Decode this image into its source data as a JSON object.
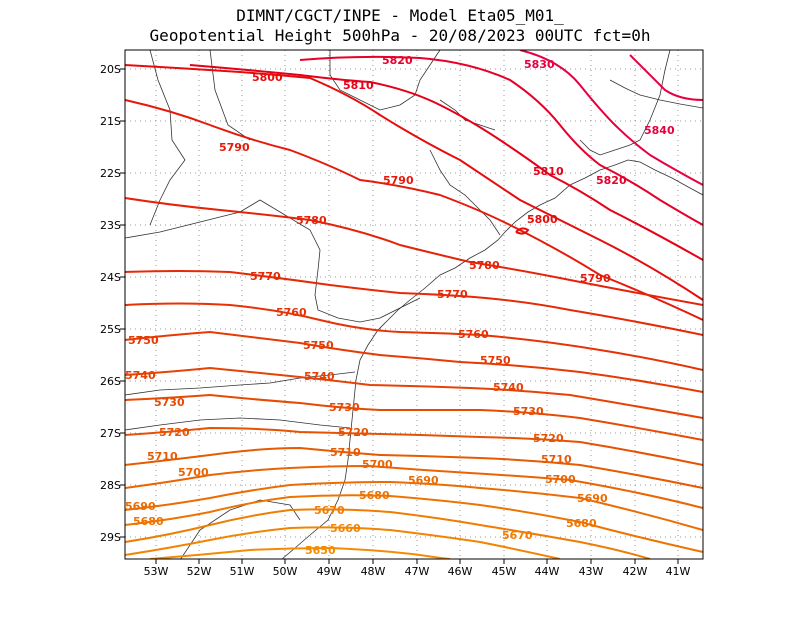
{
  "title_line1": "DIMNT/CGCT/INPE -  Model Eta05_M01_",
  "title_line2": "Geopotential Height 500hPa -  20/08/2023 00UTC fct=0h",
  "lat_ticks": [
    "20S",
    "21S",
    "22S",
    "23S",
    "24S",
    "25S",
    "26S",
    "27S",
    "28S",
    "29S"
  ],
  "lon_ticks": [
    "53W",
    "52W",
    "51W",
    "50W",
    "49W",
    "48W",
    "47W",
    "46W",
    "45W",
    "44W",
    "43W",
    "42W",
    "41W"
  ],
  "contour_labels": [
    {
      "text": "5830",
      "color": "#e60040"
    },
    {
      "text": "5840",
      "color": "#e60040"
    },
    {
      "text": "5820",
      "color": "#e6002a"
    },
    {
      "text": "5820",
      "color": "#e6002a"
    },
    {
      "text": "5810",
      "color": "#e60018"
    },
    {
      "text": "5810",
      "color": "#e60018"
    },
    {
      "text": "5800",
      "color": "#e60c0c"
    },
    {
      "text": "5800",
      "color": "#e60c0c"
    },
    {
      "text": "5790",
      "color": "#e61a0a"
    },
    {
      "text": "5790",
      "color": "#e61a0a"
    },
    {
      "text": "5790",
      "color": "#e61a0a"
    },
    {
      "text": "5780",
      "color": "#e62208"
    },
    {
      "text": "5780",
      "color": "#e62208"
    },
    {
      "text": "5770",
      "color": "#e62a06"
    },
    {
      "text": "5770",
      "color": "#e62a06"
    },
    {
      "text": "5760",
      "color": "#e63205"
    },
    {
      "text": "5760",
      "color": "#e63205"
    },
    {
      "text": "5750",
      "color": "#e63a04"
    },
    {
      "text": "5750",
      "color": "#e63a04"
    },
    {
      "text": "5750",
      "color": "#e63a04"
    },
    {
      "text": "5740",
      "color": "#e64204"
    },
    {
      "text": "5740",
      "color": "#e64204"
    },
    {
      "text": "5740",
      "color": "#e64204"
    },
    {
      "text": "5730",
      "color": "#e64a03"
    },
    {
      "text": "5730",
      "color": "#e64a03"
    },
    {
      "text": "5730",
      "color": "#e64a03"
    },
    {
      "text": "5720",
      "color": "#e65203"
    },
    {
      "text": "5720",
      "color": "#e65203"
    },
    {
      "text": "5720",
      "color": "#e65203"
    },
    {
      "text": "5710",
      "color": "#e65a02"
    },
    {
      "text": "5710",
      "color": "#e65a02"
    },
    {
      "text": "5710",
      "color": "#e65a02"
    },
    {
      "text": "5700",
      "color": "#ea6402"
    },
    {
      "text": "5700",
      "color": "#ea6402"
    },
    {
      "text": "5700",
      "color": "#ea6402"
    },
    {
      "text": "5690",
      "color": "#ec6c02"
    },
    {
      "text": "5690",
      "color": "#ec6c02"
    },
    {
      "text": "5690",
      "color": "#ec6c02"
    },
    {
      "text": "5680",
      "color": "#ee7402"
    },
    {
      "text": "5680",
      "color": "#ee7402"
    },
    {
      "text": "5680",
      "color": "#ee7402"
    },
    {
      "text": "5670",
      "color": "#f07c02"
    },
    {
      "text": "5670",
      "color": "#f07c02"
    },
    {
      "text": "5660",
      "color": "#f28402"
    },
    {
      "text": "5650",
      "color": "#f48c02"
    }
  ]
}
